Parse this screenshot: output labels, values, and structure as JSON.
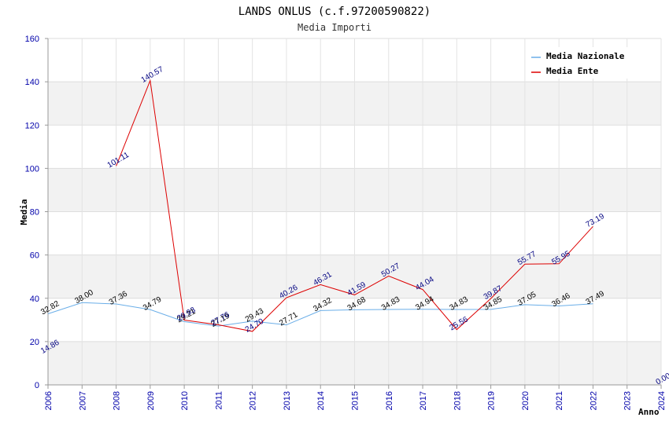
{
  "chart_data": {
    "type": "line",
    "title": "LANDS ONLUS (c.f.97200590822)",
    "subtitle": "Media Importi",
    "xlabel": "Anno",
    "ylabel": "Media",
    "ylim": [
      0,
      160
    ],
    "yticks": [
      "0",
      "20",
      "40",
      "60",
      "80",
      "100",
      "120",
      "140",
      "160"
    ],
    "categories": [
      "2006",
      "2007",
      "2008",
      "2009",
      "2010",
      "2011",
      "2012",
      "2013",
      "2014",
      "2015",
      "2016",
      "2017",
      "2018",
      "2019",
      "2020",
      "2021",
      "2022",
      "2023",
      "2024"
    ],
    "series": [
      {
        "name": "Media Nazionale",
        "color": "#6aaee8",
        "label_color": "#000000",
        "values": [
          32.82,
          38.0,
          37.36,
          34.79,
          29.21,
          27.19,
          29.43,
          27.71,
          34.32,
          34.68,
          34.83,
          34.94,
          34.83,
          34.85,
          37.05,
          36.46,
          37.49,
          null,
          null
        ],
        "labels": [
          "32.82",
          "38.00",
          "37.36",
          "34.79",
          "29.21",
          "27.19",
          "29.43",
          "27.71",
          "34.32",
          "34.68",
          "34.83",
          "34.94",
          "34.83",
          "34.85",
          "37.05",
          "36.46",
          "37.49",
          "",
          ""
        ]
      },
      {
        "name": "Media Ente",
        "color": "#dd0000",
        "label_color": "#000080",
        "values": [
          null,
          null,
          101.11,
          140.57,
          29.93,
          27.76,
          24.7,
          40.26,
          46.31,
          41.59,
          50.27,
          44.04,
          25.56,
          39.87,
          55.77,
          55.95,
          73.19,
          null,
          null
        ],
        "labels": [
          "14.86",
          "",
          "101.11",
          "140.57",
          "29.93",
          "27.76",
          "24.70",
          "40.26",
          "46.31",
          "41.59",
          "50.27",
          "44.04",
          "25.56",
          "39.87",
          "55.77",
          "55.95",
          "73.19",
          "",
          "0.00"
        ],
        "label_values": [
          14.86,
          null,
          101.11,
          140.57,
          29.93,
          27.76,
          24.7,
          40.26,
          46.31,
          41.59,
          50.27,
          44.04,
          25.56,
          39.87,
          55.77,
          55.95,
          73.19,
          null,
          0.0
        ]
      }
    ],
    "legend_position": "top-right",
    "grid": true,
    "band_colors": [
      "#f2f2f2",
      "#ffffff"
    ],
    "axis_color": "#999999"
  }
}
